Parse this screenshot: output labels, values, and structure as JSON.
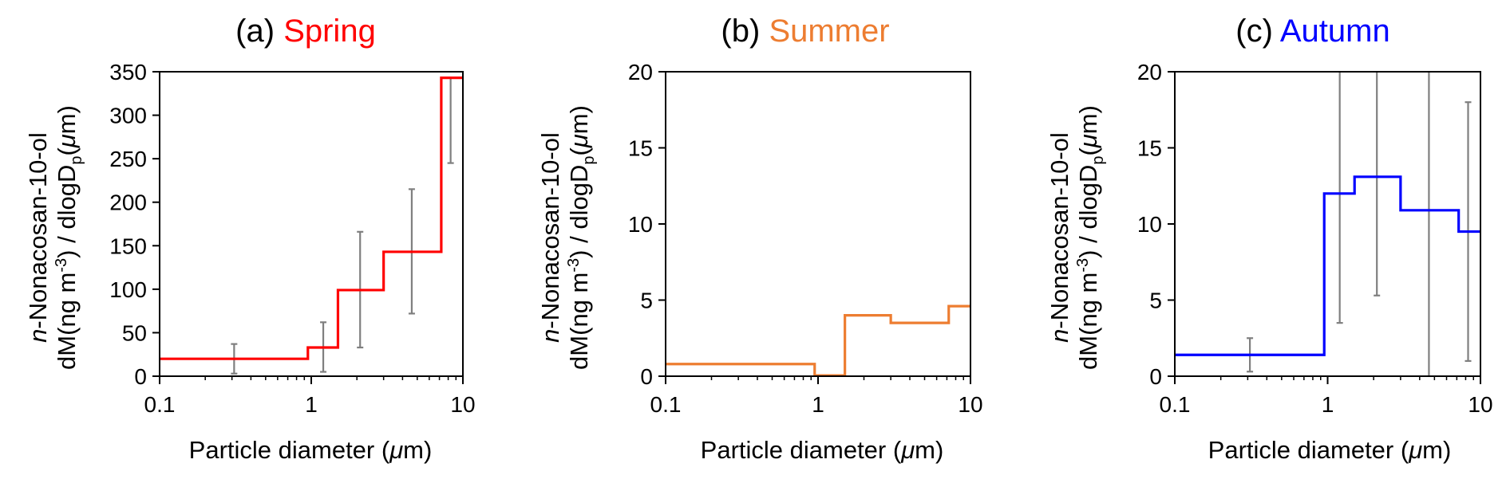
{
  "panels": [
    {
      "letter": "(a)",
      "name": "Spring",
      "color": "#ff0000",
      "ylabel_line1_italic": "n",
      "ylabel_line1_rest": "-Nonacosan-10-ol",
      "ylabel_line2_a": "dM(ng m",
      "ylabel_line2_sup": "-3",
      "ylabel_line2_b": ") / dlogD",
      "ylabel_line2_sub": "p",
      "ylabel_line2_c": "(",
      "ylabel_line2_mu": "μ",
      "ylabel_line2_d": "m)",
      "xlabel_a": "Particle diameter (",
      "xlabel_mu": "μ",
      "xlabel_b": "m)",
      "yticks": [
        "0",
        "50",
        "100",
        "150",
        "200",
        "250",
        "300",
        "350"
      ],
      "xticks": [
        "0.1",
        "1",
        "10"
      ]
    },
    {
      "letter": "(b)",
      "name": "Summer",
      "color": "#ed7d31",
      "ylabel_line1_italic": "n",
      "ylabel_line1_rest": "-Nonacosan-10-ol",
      "ylabel_line2_a": "dM(ng m",
      "ylabel_line2_sup": "-3",
      "ylabel_line2_b": ") / dlogD",
      "ylabel_line2_sub": "p",
      "ylabel_line2_c": "(",
      "ylabel_line2_mu": "μ",
      "ylabel_line2_d": "m)",
      "xlabel_a": "Particle diameter (",
      "xlabel_mu": "μ",
      "xlabel_b": "m)",
      "yticks": [
        "0",
        "5",
        "10",
        "15",
        "20"
      ],
      "xticks": [
        "0.1",
        "1",
        "10"
      ]
    },
    {
      "letter": "(c)",
      "name": "Autumn",
      "color": "#0000ff",
      "ylabel_line1_italic": "n",
      "ylabel_line1_rest": "-Nonacosan-10-ol",
      "ylabel_line2_a": "dM(ng m",
      "ylabel_line2_sup": "-3",
      "ylabel_line2_b": ") / dlogD",
      "ylabel_line2_sub": "p",
      "ylabel_line2_c": "(",
      "ylabel_line2_mu": "μ",
      "ylabel_line2_d": "m)",
      "xlabel_a": "Particle diameter (",
      "xlabel_mu": "μ",
      "xlabel_b": "m)",
      "yticks": [
        "0",
        "5",
        "10",
        "15",
        "20"
      ],
      "xticks": [
        "0.1",
        "1",
        "10"
      ]
    }
  ],
  "colors": {
    "errorbar": "#7f7f7f",
    "axis": "#000000"
  },
  "chart_data": [
    {
      "type": "line",
      "step": true,
      "title": "(a) Spring",
      "xscale": "log",
      "xlim": [
        0.1,
        10
      ],
      "ylim": [
        0,
        350
      ],
      "bin_edges": [
        0.1,
        0.95,
        1.5,
        3.0,
        7.2,
        10
      ],
      "values": [
        20,
        33,
        99,
        143,
        343
      ],
      "error_bars": [
        {
          "x": 0.31,
          "low": 3,
          "high": 37
        },
        {
          "x": 1.2,
          "low": 5,
          "high": 62
        },
        {
          "x": 2.1,
          "low": 33,
          "high": 166
        },
        {
          "x": 4.6,
          "low": 72,
          "high": 215
        },
        {
          "x": 8.3,
          "low": 245,
          "high": 343
        }
      ]
    },
    {
      "type": "line",
      "step": true,
      "title": "(b) Summer",
      "xscale": "log",
      "xlim": [
        0.1,
        10
      ],
      "ylim": [
        0,
        20
      ],
      "bin_edges": [
        0.1,
        0.95,
        1.5,
        3.0,
        7.2,
        10
      ],
      "values": [
        0.8,
        0.05,
        4.0,
        3.5,
        4.6
      ],
      "error_bars": []
    },
    {
      "type": "line",
      "step": true,
      "title": "(c) Autumn",
      "xscale": "log",
      "xlim": [
        0.1,
        10
      ],
      "ylim": [
        0,
        20
      ],
      "bin_edges": [
        0.1,
        0.95,
        1.5,
        3.0,
        7.2,
        10
      ],
      "values": [
        1.4,
        12.0,
        13.1,
        10.9,
        9.5
      ],
      "error_bars": [
        {
          "x": 0.31,
          "low": 0.3,
          "high": 2.5
        },
        {
          "x": 1.2,
          "low": 3.5,
          "high": 20
        },
        {
          "x": 2.1,
          "low": 5.3,
          "high": 20
        },
        {
          "x": 4.6,
          "low": 0,
          "high": 20
        },
        {
          "x": 8.3,
          "low": 1.0,
          "high": 18
        }
      ]
    }
  ]
}
